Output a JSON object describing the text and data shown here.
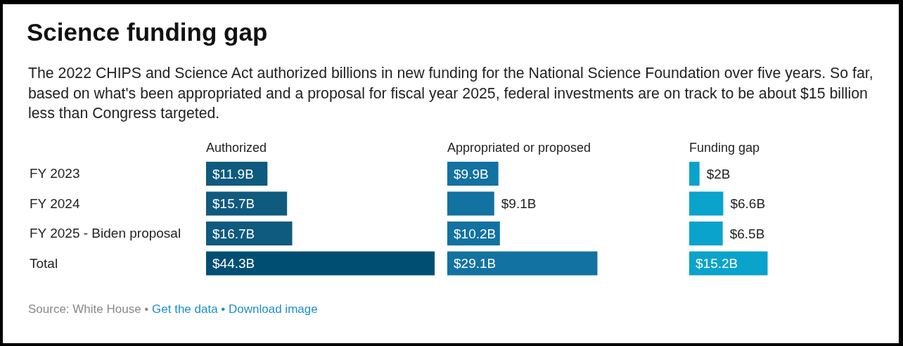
{
  "chart_data": [
    {
      "type": "bar",
      "orientation": "horizontal",
      "title": "Science funding gap",
      "subtitle": "The 2022 CHIPS and Science Act authorized billions in new funding for the National Science Foundation over five years. So far, based on what's been appropriated and a proposal for fiscal year 2025, federal investments are on track to be about $15 billion less than Congress targeted.",
      "annotations": [
        "Source: White House •",
        "Get the data •",
        "Download image"
      ],
      "tick_labels": "y",
      "categories": [
        "FY 2023",
        "FY 2024",
        "FY 2025 - Biden proposal",
        "Total"
      ],
      "series": [
        {
          "name": "Authorized",
          "colors": [
            "#0f5a7f",
            "#0f5a7f",
            "#0f5a7f",
            "#004f72"
          ],
          "values": [
            11.9,
            15.7,
            16.7,
            44.3
          ],
          "value_labels": [
            "$11.9B",
            "$15.7B",
            "$16.7B",
            "$44.3B"
          ]
        }
      ]
    },
    {
      "type": "bar",
      "orientation": "horizontal",
      "tick_labels": false,
      "series": [
        {
          "name": "Appropriated or proposed",
          "colors": [
            "#1272a1",
            "#1272a1",
            "#1272a1",
            "#1272a1"
          ],
          "values": [
            9.9,
            9.1,
            10.2,
            29.1
          ],
          "value_labels": [
            "$9.9B",
            "$9.1B",
            "$10.2B",
            "$29.1B"
          ]
        }
      ]
    },
    {
      "type": "bar",
      "orientation": "horizontal",
      "tick_labels": false,
      "series": [
        {
          "name": "Funding gap",
          "colors": [
            "#0aa3cc",
            "#0aa3cc",
            "#0aa3cc",
            "#0aa3cc"
          ],
          "values": [
            2,
            6.6,
            6.5,
            15.2
          ],
          "value_labels": [
            "$2B",
            "$6.6B",
            "$6.5B",
            "$15.2B"
          ]
        }
      ]
    }
  ]
}
